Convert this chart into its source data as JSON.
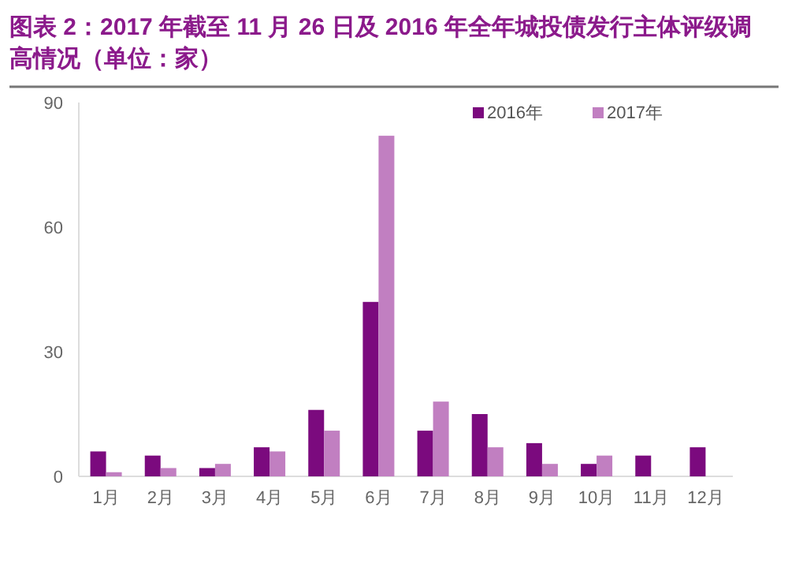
{
  "chart_data": {
    "type": "bar",
    "title": "图表 2：2017 年截至 11 月 26 日及 2016 年全年城投债发行主体评级调高情况（单位：家）",
    "categories": [
      "1月",
      "2月",
      "3月",
      "4月",
      "5月",
      "6月",
      "7月",
      "8月",
      "9月",
      "10月",
      "11月",
      "12月"
    ],
    "series": [
      {
        "name": "2016年",
        "color": "#7b0a7e",
        "values": [
          6,
          5,
          2,
          7,
          16,
          42,
          11,
          15,
          8,
          3,
          5,
          7
        ]
      },
      {
        "name": "2017年",
        "color": "#c17fc1",
        "values": [
          1,
          2,
          3,
          6,
          11,
          82,
          18,
          7,
          3,
          5,
          null,
          null
        ]
      }
    ],
    "ylim": [
      0,
      90
    ],
    "yticks": [
      0,
      30,
      60,
      90
    ],
    "grid": false,
    "legend": "top right"
  }
}
